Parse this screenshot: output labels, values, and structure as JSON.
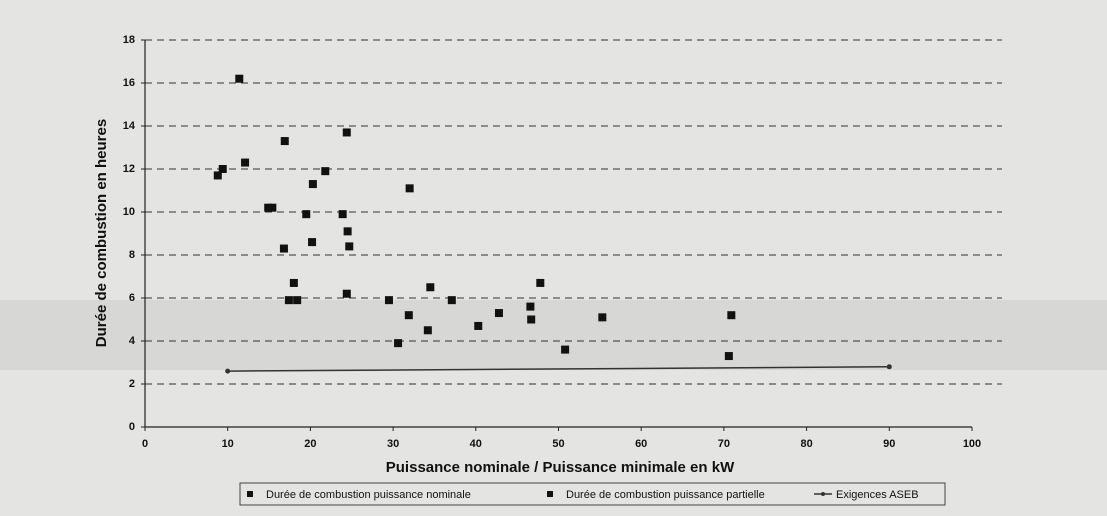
{
  "chart_data": {
    "type": "scatter",
    "ylabel": "Durée de combustion en heures",
    "xlabel": "Puissance nominale / Puissance minimale en kW",
    "xlim": [
      0,
      100
    ],
    "ylim": [
      0,
      18
    ],
    "xticks": [
      0,
      10,
      20,
      30,
      40,
      50,
      60,
      70,
      80,
      90,
      100
    ],
    "yticks": [
      0,
      2,
      4,
      6,
      8,
      10,
      12,
      14,
      16,
      18
    ],
    "grid": true,
    "legend": "bottom",
    "series": [
      {
        "name": "Durée de combustion puissance nominale",
        "color": "#111111",
        "marker": "square",
        "x": [
          8.8,
          11.4,
          14.9,
          16.9,
          17.4,
          18.4,
          20.3,
          21.8,
          24.4,
          24.7,
          32.0,
          30.6,
          34.2,
          37.1,
          42.8,
          46.7,
          50.8,
          70.6
        ],
        "values": [
          11.7,
          16.2,
          10.2,
          13.3,
          5.9,
          5.9,
          11.3,
          11.9,
          13.7,
          8.4,
          11.1,
          3.9,
          4.5,
          5.9,
          5.3,
          5.0,
          3.6,
          3.3
        ]
      },
      {
        "name": "Durée de combustion puissance partielle",
        "color": "#111111",
        "marker": "square",
        "x": [
          9.4,
          12.1,
          15.4,
          16.8,
          18.0,
          19.5,
          20.2,
          23.9,
          24.5,
          24.4,
          29.5,
          31.9,
          34.5,
          40.3,
          46.6,
          47.8,
          55.3,
          70.9
        ],
        "values": [
          12.0,
          12.3,
          10.2,
          8.3,
          6.7,
          9.9,
          8.6,
          9.9,
          9.1,
          6.2,
          5.9,
          5.2,
          6.5,
          4.7,
          5.6,
          6.7,
          5.1,
          5.2
        ]
      },
      {
        "name": "Exigences ASEB",
        "color": "#333333",
        "marker": "line",
        "x": [
          10,
          90
        ],
        "values": [
          2.6,
          2.8
        ]
      }
    ]
  }
}
